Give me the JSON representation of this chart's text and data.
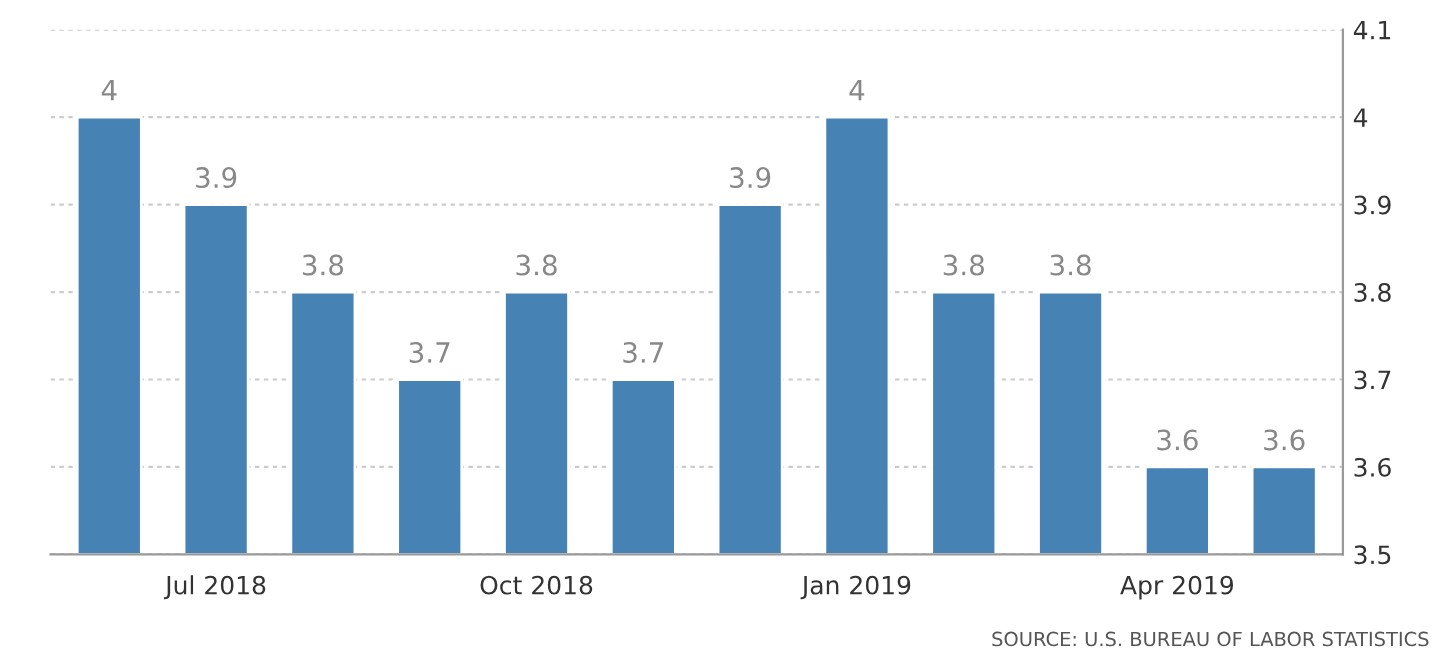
{
  "chart_data": {
    "type": "bar",
    "categories": [
      null,
      "Jul 2018",
      null,
      null,
      "Oct 2018",
      null,
      null,
      "Jan 2019",
      null,
      null,
      "Apr 2019",
      null
    ],
    "values": [
      4,
      3.9,
      3.8,
      3.7,
      3.8,
      3.7,
      3.9,
      4,
      3.8,
      3.8,
      3.6,
      3.6
    ],
    "color": "#4682b4",
    "ylim": [
      3.5,
      4.1
    ],
    "yticks": [
      3.5,
      3.6,
      3.7,
      3.8,
      3.9,
      4,
      4.1
    ],
    "grid": "y",
    "data_labels": true,
    "annotations": [
      "SOURCE: U.S. BUREAU OF LABOR STATISTICS"
    ]
  }
}
